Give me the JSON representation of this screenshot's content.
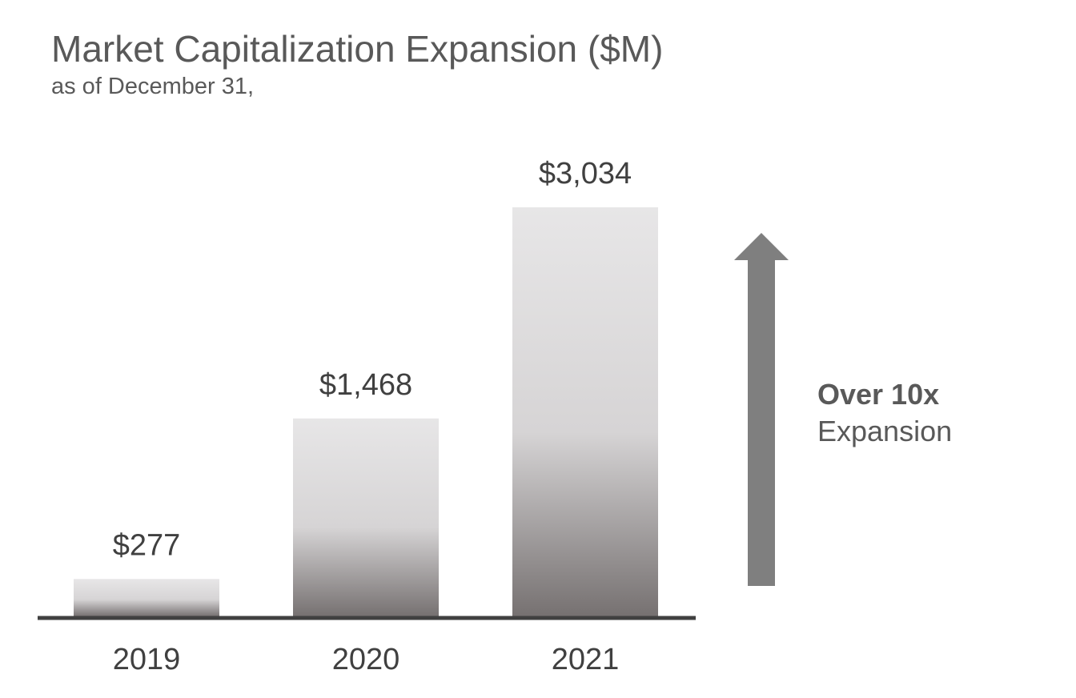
{
  "header": {
    "title": "Market Capitalization Expansion ($M)",
    "subtitle": "as of December 31,"
  },
  "callout": {
    "bold": "Over 10x",
    "text": "Expansion",
    "arrow_color": "#7f7f7f"
  },
  "colors": {
    "bar_top": "#e7e6e7",
    "bar_bottom": "#767171",
    "axis": "#404040",
    "text": "#404040"
  },
  "chart_data": {
    "type": "bar",
    "title": "Market Capitalization Expansion ($M)",
    "subtitle": "as of December 31,",
    "categories": [
      "2019",
      "2020",
      "2021"
    ],
    "values": [
      277,
      1468,
      3034
    ],
    "data_labels": [
      "$277",
      "$1,468",
      "$3,034"
    ],
    "xlabel": "",
    "ylabel": "",
    "ylim": [
      0,
      3034
    ],
    "grid": false,
    "legend": "none"
  }
}
